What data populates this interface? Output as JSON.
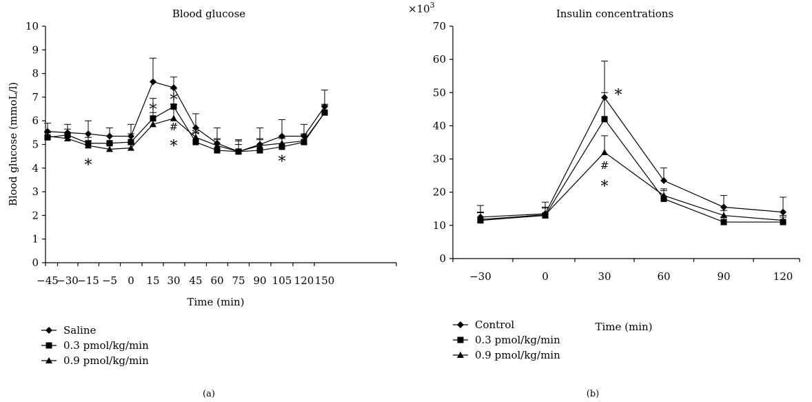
{
  "panels": [
    {
      "caption": "(a)"
    },
    {
      "caption": "(b)"
    }
  ],
  "chart_data": [
    {
      "type": "line",
      "title": "Blood glucose",
      "xlabel": "Time (min)",
      "ylabel": "Blood glucose (mmoL/l)",
      "ylim": [
        0,
        10
      ],
      "yticks": [
        "0",
        "1",
        "2",
        "3",
        "4",
        "5",
        "6",
        "7",
        "8",
        "9",
        "10"
      ],
      "categories": [
        "−45",
        "−30",
        "−15",
        "−5",
        "0",
        "15",
        "30",
        "45",
        "60",
        "75",
        "90",
        "105",
        "120",
        "150"
      ],
      "grid": false,
      "legend_position": "bottom-left",
      "series": [
        {
          "name": "Saline",
          "marker": "diamond",
          "values": [
            5.55,
            5.5,
            5.45,
            5.35,
            5.35,
            7.65,
            7.4,
            5.7,
            5.05,
            4.7,
            5.0,
            5.35,
            5.35,
            6.6
          ],
          "err": [
            0.35,
            0.35,
            0.55,
            0.35,
            0.5,
            1.0,
            0.45,
            0.6,
            0.65,
            0.5,
            0.7,
            0.7,
            0.5,
            0.7
          ]
        },
        {
          "name": "0.3 pmol/kg/min",
          "marker": "square",
          "values": [
            5.3,
            5.4,
            5.05,
            5.05,
            5.1,
            6.1,
            6.6,
            5.1,
            4.75,
            4.7,
            4.75,
            4.9,
            5.1,
            6.35
          ],
          "err": [
            0.2,
            0.25,
            0.25,
            0.3,
            0.35,
            0.85,
            0.75,
            0.4,
            0.45,
            0.45,
            0.45,
            0.35,
            0.35,
            0.35
          ]
        },
        {
          "name": "0.9 pmol/kg/min",
          "marker": "triangle",
          "values": [
            5.35,
            5.25,
            4.95,
            4.8,
            4.85,
            5.85,
            6.1,
            5.3,
            4.95,
            4.7,
            4.95,
            5.05,
            5.15,
            6.35
          ],
          "err": [
            0.2,
            0.2,
            0.2,
            0.2,
            0.2,
            0.5,
            0.6,
            0.4,
            0.3,
            0.3,
            0.3,
            0.25,
            0.25,
            0.3
          ]
        }
      ],
      "annotations": [
        {
          "text": "*",
          "x": "−15",
          "y": 4.3
        },
        {
          "text": "*",
          "x": "15",
          "y": 6.65
        },
        {
          "text": "*",
          "x": "30",
          "y": 7.05
        },
        {
          "text": "#",
          "x": "30",
          "y": 5.75
        },
        {
          "text": "*",
          "x": "30",
          "y": 5.1
        },
        {
          "text": "*",
          "x": "45",
          "y": 5.55
        },
        {
          "text": "*",
          "x": "105",
          "y": 4.45
        }
      ]
    },
    {
      "type": "line",
      "title": "Insulin concentrations",
      "xlabel": "Time (min)",
      "ylabel": "",
      "y_multiplier": "×10",
      "y_multiplier_exp": "3",
      "ylim": [
        0,
        70
      ],
      "yticks": [
        "0",
        "10",
        "20",
        "30",
        "40",
        "50",
        "60",
        "70"
      ],
      "categories": [
        "−30",
        "0",
        "30",
        "60",
        "90",
        "120"
      ],
      "grid": false,
      "legend_position": "bottom-left",
      "series": [
        {
          "name": "Control",
          "marker": "diamond",
          "values": [
            12.5,
            13.5,
            48.5,
            23.5,
            15.5,
            14.0
          ],
          "err": [
            3.5,
            3.5,
            11.0,
            3.8,
            3.5,
            4.5
          ]
        },
        {
          "name": "0.3 pmol/kg/min",
          "marker": "square",
          "values": [
            11.5,
            13.0,
            42.0,
            18.0,
            11.0,
            11.0
          ],
          "err": [
            2.5,
            2.5,
            8.0,
            2.5,
            1.5,
            1.5
          ]
        },
        {
          "name": "0.9 pmol/kg/min",
          "marker": "triangle",
          "values": [
            11.8,
            13.2,
            32.0,
            19.0,
            13.0,
            11.5
          ],
          "err": [
            2.0,
            2.0,
            5.0,
            2.0,
            1.5,
            1.5
          ]
        }
      ],
      "annotations": [
        {
          "text": "*",
          "x": "30",
          "y": 50.5,
          "offset": 20
        },
        {
          "text": "#",
          "x": "30",
          "y": 28.0
        },
        {
          "text": "*",
          "x": "30",
          "y": 23.0
        }
      ]
    }
  ]
}
